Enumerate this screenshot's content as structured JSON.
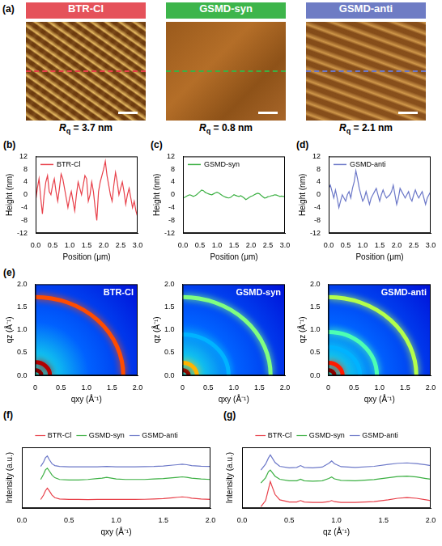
{
  "afm": {
    "panel_label": "(a)",
    "images": [
      {
        "title": "BTR-Cl",
        "color": "#e5525a",
        "line_color": "#e8404a",
        "rq_symbol": "R",
        "rq_subscript": "q",
        "rq_text": " = 3.7 nm"
      },
      {
        "title": "GSMD-syn",
        "color": "#3db54b",
        "line_color": "#3cb043",
        "rq_symbol": "R",
        "rq_subscript": "q",
        "rq_text": " = 0.8 nm"
      },
      {
        "title": "GSMD-anti",
        "color": "#6e7cc4",
        "line_color": "#6c78c8",
        "rq_symbol": "R",
        "rq_subscript": "q",
        "rq_text": " = 2.1 nm"
      }
    ]
  },
  "chart_data": [
    {
      "type": "line",
      "panel_label": "(b)",
      "x_label": "Position (μm)",
      "y_label": "Height (nm)",
      "legend": "upper left",
      "grid": false,
      "xlim": [
        0,
        3
      ],
      "xticks": [
        {
          "value": 0,
          "label": "0.0"
        },
        0.5,
        {
          "value": 1,
          "label": "1.0"
        },
        1.5,
        {
          "value": 2,
          "label": "2.0"
        },
        2.5,
        {
          "value": 3,
          "label": "3.0"
        }
      ],
      "ylim": [
        -12,
        12
      ],
      "yticks": [
        -12,
        -8,
        -4,
        0,
        4,
        8,
        12
      ],
      "x": [
        0,
        0.05,
        0.1,
        0.15,
        0.2,
        0.25,
        0.3,
        0.35,
        0.4,
        0.45,
        0.5,
        0.55,
        0.6,
        0.65,
        0.7,
        0.75,
        0.8,
        0.85,
        0.9,
        0.95,
        1,
        1.05,
        1.1,
        1.15,
        1.2,
        1.25,
        1.3,
        1.35,
        1.4,
        1.45,
        1.5,
        1.55,
        1.6,
        1.65,
        1.7,
        1.75,
        1.8,
        1.85,
        1.9,
        1.95,
        2,
        2.05,
        2.1,
        2.15,
        2.2,
        2.25,
        2.3,
        2.35,
        2.4,
        2.45,
        2.5,
        2.55,
        2.6,
        2.65,
        2.7,
        2.75,
        2.8,
        2.85,
        2.9,
        2.95,
        3
      ],
      "series": [
        {
          "name": "BTR-Cl",
          "color": "#e8404a",
          "values": [
            -2,
            2,
            5,
            -1,
            -6,
            0,
            4,
            6,
            1,
            0,
            3,
            5,
            1,
            -2,
            2,
            6.5,
            5,
            2,
            -1,
            -4,
            -1,
            1,
            -2,
            -5,
            0,
            4,
            2,
            0,
            3,
            6,
            5,
            -2,
            0,
            4,
            1,
            -4,
            -8,
            1,
            4,
            6,
            8,
            10.5,
            6,
            3,
            0,
            -2,
            3,
            7,
            4,
            0,
            2,
            4,
            1,
            -3,
            0,
            2,
            -1,
            -4,
            -2,
            -5,
            -7
          ]
        }
      ]
    },
    {
      "type": "line",
      "panel_label": "(c)",
      "x_label": "Position (μm)",
      "y_label": "Height (nm)",
      "legend": "upper left",
      "grid": false,
      "xlim": [
        0,
        3
      ],
      "xticks": [
        {
          "value": 0,
          "label": "0.0"
        },
        0.5,
        {
          "value": 1,
          "label": "1.0"
        },
        1.5,
        {
          "value": 2,
          "label": "2.0"
        },
        2.5,
        {
          "value": 3,
          "label": "3.0"
        }
      ],
      "ylim": [
        -12,
        12
      ],
      "yticks": [
        -12,
        -8,
        -4,
        0,
        4,
        8,
        12
      ],
      "x": [
        0,
        0.05,
        0.1,
        0.15,
        0.2,
        0.25,
        0.3,
        0.35,
        0.4,
        0.45,
        0.5,
        0.55,
        0.6,
        0.65,
        0.7,
        0.75,
        0.8,
        0.85,
        0.9,
        0.95,
        1,
        1.05,
        1.1,
        1.15,
        1.2,
        1.25,
        1.3,
        1.35,
        1.4,
        1.45,
        1.5,
        1.55,
        1.6,
        1.65,
        1.7,
        1.75,
        1.8,
        1.85,
        1.9,
        1.95,
        2,
        2.05,
        2.1,
        2.15,
        2.2,
        2.25,
        2.3,
        2.35,
        2.4,
        2.45,
        2.5,
        2.55,
        2.6,
        2.65,
        2.7,
        2.75,
        2.8,
        2.85,
        2.9,
        2.95,
        3
      ],
      "series": [
        {
          "name": "GSMD-syn",
          "color": "#3cb043",
          "values": [
            -1,
            -0.8,
            -0.5,
            -0.2,
            0,
            -0.2,
            -0.5,
            -0.3,
            0,
            0.5,
            1,
            1.5,
            1.3,
            0.8,
            0.5,
            0.3,
            0.1,
            0,
            0.3,
            0.6,
            0.8,
            0.6,
            0.2,
            -0.2,
            -0.5,
            -0.7,
            -0.9,
            -1,
            -0.8,
            -0.4,
            0,
            -0.2,
            -0.4,
            -0.5,
            -0.3,
            -0.6,
            -1,
            -1.5,
            -1.2,
            -0.8,
            -0.5,
            -0.3,
            0,
            0.3,
            0.5,
            0.3,
            -0.2,
            -0.6,
            -1,
            -0.9,
            -0.6,
            -0.5,
            -0.3,
            -0.2,
            0,
            -0.1,
            -0.3,
            -0.5,
            -0.4,
            -0.5,
            -0.5
          ]
        }
      ]
    },
    {
      "type": "line",
      "panel_label": "(d)",
      "x_label": "Position (μm)",
      "y_label": "Height (nm)",
      "legend": "upper left",
      "grid": false,
      "xlim": [
        0,
        3
      ],
      "xticks": [
        {
          "value": 0,
          "label": "0.0"
        },
        0.5,
        {
          "value": 1,
          "label": "1.0"
        },
        1.5,
        {
          "value": 2,
          "label": "2.0"
        },
        2.5,
        {
          "value": 3,
          "label": "3.0"
        }
      ],
      "ylim": [
        -12,
        12
      ],
      "yticks": [
        -12,
        -8,
        -4,
        0,
        4,
        8,
        12
      ],
      "x": [
        0,
        0.05,
        0.1,
        0.15,
        0.2,
        0.25,
        0.3,
        0.35,
        0.4,
        0.45,
        0.5,
        0.55,
        0.6,
        0.65,
        0.7,
        0.75,
        0.8,
        0.85,
        0.9,
        0.95,
        1,
        1.05,
        1.1,
        1.15,
        1.2,
        1.25,
        1.3,
        1.35,
        1.4,
        1.45,
        1.5,
        1.55,
        1.6,
        1.65,
        1.7,
        1.75,
        1.8,
        1.85,
        1.9,
        1.95,
        2,
        2.05,
        2.1,
        2.15,
        2.2,
        2.25,
        2.3,
        2.35,
        2.4,
        2.45,
        2.5,
        2.55,
        2.6,
        2.65,
        2.7,
        2.75,
        2.8,
        2.85,
        2.9,
        2.95,
        3
      ],
      "series": [
        {
          "name": "GSMD-anti",
          "color": "#6c78c8",
          "values": [
            2,
            3,
            1,
            -1,
            1.5,
            -1,
            -4,
            -2,
            0,
            -1,
            -2,
            0,
            1,
            -1,
            2,
            4,
            7.5,
            5,
            2,
            0,
            -2,
            -1,
            1,
            -1,
            -3,
            -1,
            0,
            1,
            2,
            0,
            -2,
            0,
            1.5,
            0,
            -1,
            -0.5,
            0,
            1,
            3,
            0,
            -3,
            -1,
            2,
            1,
            0,
            -1,
            0,
            1,
            -1,
            -2,
            0,
            1.5,
            0,
            -1,
            0,
            1,
            -1,
            -3,
            -1,
            0,
            1
          ]
        }
      ]
    },
    {
      "type": "rings",
      "panel_label": "(e)",
      "title": "BTR-Cl",
      "x_label": "qxy (Å⁻¹)",
      "y_label": "qz (Å⁻¹)",
      "grid": false,
      "xlim": [
        0,
        2
      ],
      "xticks": [
        0,
        0.5,
        {
          "value": 1,
          "label": "1.0"
        },
        1.5,
        {
          "value": 2,
          "label": "2.0"
        }
      ],
      "ylim": [
        0,
        2
      ],
      "yticks": [
        {
          "value": 0,
          "label": "0.0"
        },
        0.5,
        {
          "value": 1,
          "label": "1.0"
        },
        1.5,
        {
          "value": 2,
          "label": "2.0"
        }
      ],
      "rings": {
        "q": [
          0.12,
          0.29,
          1.72
        ],
        "intensity": [
          1,
          0.95,
          0.8
        ]
      }
    },
    {
      "type": "rings",
      "title": "GSMD-syn",
      "x_label": "qxy (Å⁻¹)",
      "y_label": "qz (Å⁻¹)",
      "grid": false,
      "xlim": [
        0,
        2
      ],
      "xticks": [
        0,
        0.5,
        {
          "value": 1,
          "label": "1.0"
        },
        1.5,
        {
          "value": 2,
          "label": "2.0"
        }
      ],
      "ylim": [
        0,
        2
      ],
      "yticks": [
        {
          "value": 0,
          "label": "0.0"
        },
        0.5,
        {
          "value": 1,
          "label": "1.0"
        },
        1.5,
        {
          "value": 2,
          "label": "2.0"
        }
      ],
      "rings": {
        "q": [
          0.12,
          0.28,
          0.9,
          1.72
        ],
        "intensity": [
          1,
          0.7,
          0.3,
          0.5
        ]
      }
    },
    {
      "type": "rings",
      "title": "GSMD-anti",
      "x_label": "qxy (Å⁻¹)",
      "y_label": "qz (Å⁻¹)",
      "grid": false,
      "xlim": [
        0,
        2
      ],
      "xticks": [
        0,
        0.5,
        {
          "value": 1,
          "label": "1.0"
        },
        1.5,
        {
          "value": 2,
          "label": "2.0"
        }
      ],
      "ylim": [
        0,
        2
      ],
      "yticks": [
        {
          "value": 0,
          "label": "0.0"
        },
        0.5,
        {
          "value": 1,
          "label": "1.0"
        },
        1.5,
        {
          "value": 2,
          "label": "2.0"
        }
      ],
      "rings": {
        "q": [
          0.12,
          0.28,
          0.62,
          0.95,
          1.72
        ],
        "intensity": [
          1,
          0.85,
          0.3,
          0.45,
          0.55
        ]
      }
    },
    {
      "type": "line",
      "panel_label": "(f)",
      "x_label": "qxy (Å⁻¹)",
      "y_label": "Intensity (a.u.)",
      "legend": "top",
      "grid": false,
      "tick_labels": "x",
      "xlim": [
        0,
        2
      ],
      "xticks": [
        {
          "value": 0,
          "label": "0.0"
        },
        0.5,
        {
          "value": 1,
          "label": "1.0"
        },
        1.5,
        {
          "value": 2,
          "label": "2.0"
        }
      ],
      "ylim": [
        0,
        7
      ],
      "x": [
        0.2,
        0.23,
        0.25,
        0.27,
        0.29,
        0.32,
        0.35,
        0.4,
        0.5,
        0.6,
        0.7,
        0.8,
        0.85,
        0.9,
        0.95,
        1.0,
        1.1,
        1.2,
        1.3,
        1.4,
        1.5,
        1.6,
        1.65,
        1.7,
        1.75,
        1.8,
        1.9,
        2.0
      ],
      "series": [
        {
          "name": "BTR-Cl",
          "color": "#e8404a",
          "values": [
            1.0,
            1.5,
            2.0,
            2.3,
            2.0,
            1.5,
            1.2,
            1.05,
            1.0,
            1.0,
            0.98,
            1.0,
            1.0,
            1.02,
            1.0,
            1.0,
            1.0,
            1.0,
            1.02,
            1.05,
            1.1,
            1.2,
            1.25,
            1.3,
            1.25,
            1.15,
            1.05,
            1.0
          ]
        },
        {
          "name": "GSMD-syn",
          "color": "#3cb043",
          "values": [
            3.3,
            3.9,
            4.4,
            4.6,
            4.3,
            3.8,
            3.5,
            3.3,
            3.25,
            3.25,
            3.3,
            3.4,
            3.45,
            3.55,
            3.45,
            3.35,
            3.3,
            3.3,
            3.3,
            3.35,
            3.4,
            3.5,
            3.55,
            3.6,
            3.55,
            3.45,
            3.35,
            3.3
          ]
        },
        {
          "name": "GSMD-anti",
          "color": "#6c78c8",
          "values": [
            4.8,
            5.3,
            5.8,
            6.0,
            5.6,
            5.1,
            4.9,
            4.8,
            4.75,
            4.75,
            4.75,
            4.75,
            4.78,
            4.8,
            4.78,
            4.75,
            4.75,
            4.75,
            4.78,
            4.8,
            4.85,
            4.95,
            5.0,
            5.05,
            5.0,
            4.9,
            4.82,
            4.8
          ]
        }
      ]
    },
    {
      "type": "line",
      "panel_label": "(g)",
      "x_label": "qz (Å⁻¹)",
      "y_label": "Intensity (a.u.)",
      "legend": "top",
      "grid": false,
      "tick_labels": "x",
      "xlim": [
        0,
        2
      ],
      "xticks": [
        {
          "value": 0,
          "label": "0.0"
        },
        0.5,
        {
          "value": 1,
          "label": "1.0"
        },
        1.5,
        {
          "value": 2,
          "label": "2.0"
        }
      ],
      "ylim": [
        0,
        8
      ],
      "x": [
        0.2,
        0.25,
        0.28,
        0.3,
        0.32,
        0.35,
        0.4,
        0.5,
        0.58,
        0.62,
        0.66,
        0.75,
        0.85,
        0.92,
        0.95,
        0.98,
        1.05,
        1.2,
        1.4,
        1.55,
        1.65,
        1.75,
        1.85,
        1.95,
        2.0
      ],
      "series": [
        {
          "name": "BTR-Cl",
          "color": "#e8404a",
          "values": [
            0.2,
            1.0,
            2.5,
            3.5,
            2.8,
            1.8,
            1.1,
            0.8,
            0.8,
            1.0,
            0.8,
            0.75,
            0.75,
            0.85,
            1.0,
            0.85,
            0.75,
            0.75,
            0.85,
            1.1,
            1.3,
            1.4,
            1.3,
            1.1,
            1.0
          ]
        },
        {
          "name": "GSMD-syn",
          "color": "#3cb043",
          "values": [
            3.3,
            4.0,
            4.8,
            5.0,
            4.7,
            4.2,
            3.8,
            3.6,
            3.6,
            3.8,
            3.6,
            3.55,
            3.6,
            3.9,
            4.1,
            3.85,
            3.65,
            3.6,
            3.75,
            4.0,
            4.15,
            4.2,
            4.1,
            3.9,
            3.8
          ]
        },
        {
          "name": "GSMD-anti",
          "color": "#6c78c8",
          "values": [
            5.0,
            5.8,
            6.6,
            7.0,
            6.6,
            6.0,
            5.5,
            5.3,
            5.35,
            5.6,
            5.35,
            5.3,
            5.4,
            5.9,
            6.2,
            5.85,
            5.45,
            5.35,
            5.5,
            5.75,
            5.9,
            5.95,
            5.85,
            5.7,
            5.6
          ]
        }
      ]
    }
  ]
}
